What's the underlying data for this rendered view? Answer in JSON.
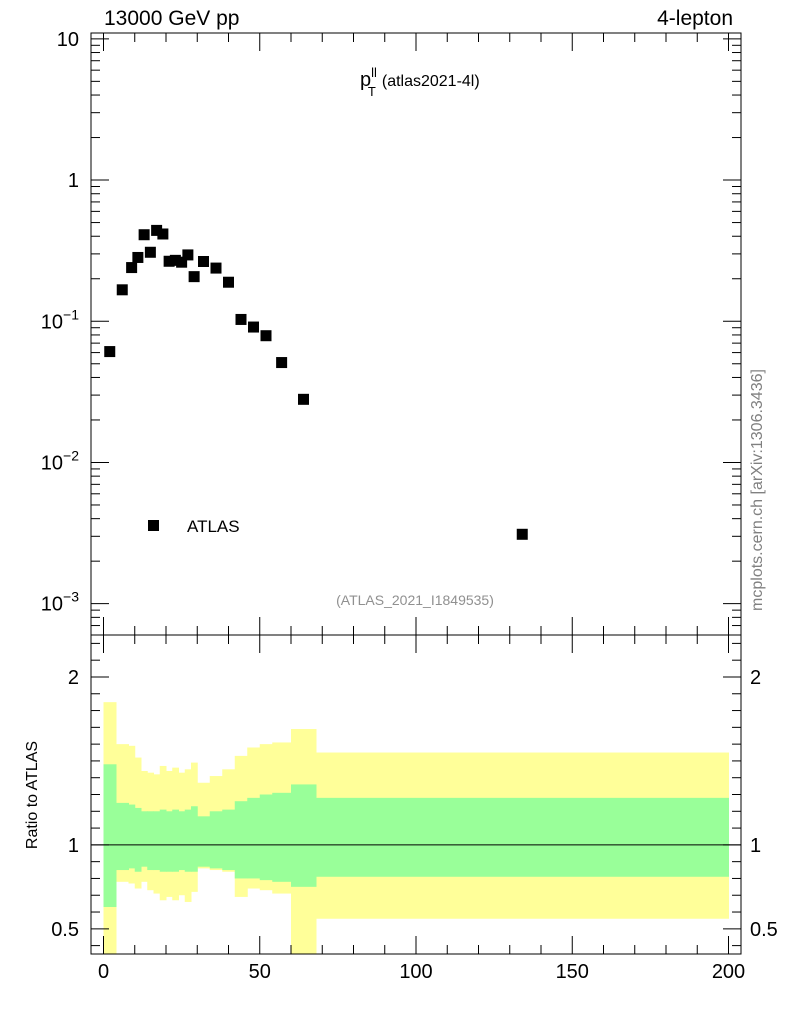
{
  "header": {
    "left": "13000 GeV pp",
    "right": "4-lepton",
    "side_label": "mcplots.cern.ch [arXiv:1306.3436]"
  },
  "chart_data": [
    {
      "type": "scatter",
      "title_main": "p",
      "title_sup": "ll",
      "title_sub": "T",
      "title_suffix": "(atlas2021-4l)",
      "watermark": "(ATLAS_2021_I1849535)",
      "yscale": "log",
      "xlim": [
        -4,
        204
      ],
      "ylim": [
        0.0006,
        11
      ],
      "grid": false,
      "legend": {
        "placement": "bottom-left",
        "entries": [
          "ATLAS"
        ]
      },
      "ytick_labels": [
        {
          "value": 10,
          "base": "10",
          "exp": ""
        },
        {
          "value": 1,
          "base": "1",
          "exp": ""
        },
        {
          "value": 0.1,
          "base": "10",
          "exp": "−1"
        },
        {
          "value": 0.01,
          "base": "10",
          "exp": "−2"
        },
        {
          "value": 0.001,
          "base": "10",
          "exp": "−3"
        }
      ],
      "series": [
        {
          "name": "ATLAS",
          "color": "#000000",
          "x": [
            2,
            6,
            9,
            11,
            13,
            15,
            17,
            19,
            21,
            23,
            25,
            27,
            29,
            32,
            36,
            40,
            44,
            48,
            52,
            57,
            64,
            134
          ],
          "y": [
            0.061,
            0.167,
            0.24,
            0.283,
            0.41,
            0.308,
            0.44,
            0.415,
            0.266,
            0.27,
            0.262,
            0.295,
            0.207,
            0.265,
            0.238,
            0.189,
            0.103,
            0.091,
            0.079,
            0.051,
            0.028,
            0.0031
          ]
        }
      ]
    },
    {
      "type": "area",
      "ylabel": "Ratio to ATLAS",
      "xlim": [
        -4,
        204
      ],
      "ylim": [
        0.35,
        2.25
      ],
      "xtick_labels": [
        "0",
        "50",
        "100",
        "150",
        "200"
      ],
      "xtick_values": [
        0,
        50,
        100,
        150,
        200
      ],
      "ytick_labels": [
        "0.5",
        "1",
        "2"
      ],
      "ytick_values": [
        0.5,
        1,
        2
      ],
      "reference_line": 1,
      "band_colors": {
        "outer": "#ffff99",
        "inner": "#99ff99"
      },
      "bins": [
        {
          "x0": 0,
          "x1": 4,
          "outer_lo": 0.3,
          "outer_hi": 1.85,
          "inner_lo": 0.63,
          "inner_hi": 1.48
        },
        {
          "x0": 4,
          "x1": 8,
          "outer_lo": 0.78,
          "outer_hi": 1.6,
          "inner_lo": 0.85,
          "inner_hi": 1.25
        },
        {
          "x0": 8,
          "x1": 10,
          "outer_lo": 0.77,
          "outer_hi": 1.59,
          "inner_lo": 0.86,
          "inner_hi": 1.24
        },
        {
          "x0": 10,
          "x1": 12,
          "outer_lo": 0.74,
          "outer_hi": 1.52,
          "inner_lo": 0.84,
          "inner_hi": 1.22
        },
        {
          "x0": 12,
          "x1": 14,
          "outer_lo": 0.78,
          "outer_hi": 1.44,
          "inner_lo": 0.87,
          "inner_hi": 1.2
        },
        {
          "x0": 14,
          "x1": 16,
          "outer_lo": 0.73,
          "outer_hi": 1.43,
          "inner_lo": 0.85,
          "inner_hi": 1.2
        },
        {
          "x0": 16,
          "x1": 18,
          "outer_lo": 0.71,
          "outer_hi": 1.42,
          "inner_lo": 0.85,
          "inner_hi": 1.2
        },
        {
          "x0": 18,
          "x1": 20,
          "outer_lo": 0.67,
          "outer_hi": 1.47,
          "inner_lo": 0.84,
          "inner_hi": 1.21
        },
        {
          "x0": 20,
          "x1": 22,
          "outer_lo": 0.69,
          "outer_hi": 1.44,
          "inner_lo": 0.84,
          "inner_hi": 1.2
        },
        {
          "x0": 22,
          "x1": 24,
          "outer_lo": 0.67,
          "outer_hi": 1.46,
          "inner_lo": 0.84,
          "inner_hi": 1.21
        },
        {
          "x0": 24,
          "x1": 26,
          "outer_lo": 0.7,
          "outer_hi": 1.43,
          "inner_lo": 0.85,
          "inner_hi": 1.2
        },
        {
          "x0": 26,
          "x1": 28,
          "outer_lo": 0.66,
          "outer_hi": 1.45,
          "inner_lo": 0.84,
          "inner_hi": 1.21
        },
        {
          "x0": 28,
          "x1": 30,
          "outer_lo": 0.72,
          "outer_hi": 1.49,
          "inner_lo": 0.84,
          "inner_hi": 1.23
        },
        {
          "x0": 30,
          "x1": 34,
          "outer_lo": 0.86,
          "outer_hi": 1.37,
          "inner_lo": 0.87,
          "inner_hi": 1.17
        },
        {
          "x0": 34,
          "x1": 38,
          "outer_lo": 0.85,
          "outer_hi": 1.41,
          "inner_lo": 0.86,
          "inner_hi": 1.2
        },
        {
          "x0": 38,
          "x1": 42,
          "outer_lo": 0.84,
          "outer_hi": 1.45,
          "inner_lo": 0.85,
          "inner_hi": 1.21
        },
        {
          "x0": 42,
          "x1": 46,
          "outer_lo": 0.69,
          "outer_hi": 1.53,
          "inner_lo": 0.8,
          "inner_hi": 1.26
        },
        {
          "x0": 46,
          "x1": 50,
          "outer_lo": 0.74,
          "outer_hi": 1.58,
          "inner_lo": 0.8,
          "inner_hi": 1.28
        },
        {
          "x0": 50,
          "x1": 54,
          "outer_lo": 0.73,
          "outer_hi": 1.6,
          "inner_lo": 0.79,
          "inner_hi": 1.3
        },
        {
          "x0": 54,
          "x1": 60,
          "outer_lo": 0.71,
          "outer_hi": 1.61,
          "inner_lo": 0.78,
          "inner_hi": 1.31
        },
        {
          "x0": 60,
          "x1": 68,
          "outer_lo": 0.3,
          "outer_hi": 1.69,
          "inner_lo": 0.75,
          "inner_hi": 1.36
        },
        {
          "x0": 68,
          "x1": 200,
          "outer_lo": 0.56,
          "outer_hi": 1.55,
          "inner_lo": 0.81,
          "inner_hi": 1.28
        }
      ]
    }
  ]
}
